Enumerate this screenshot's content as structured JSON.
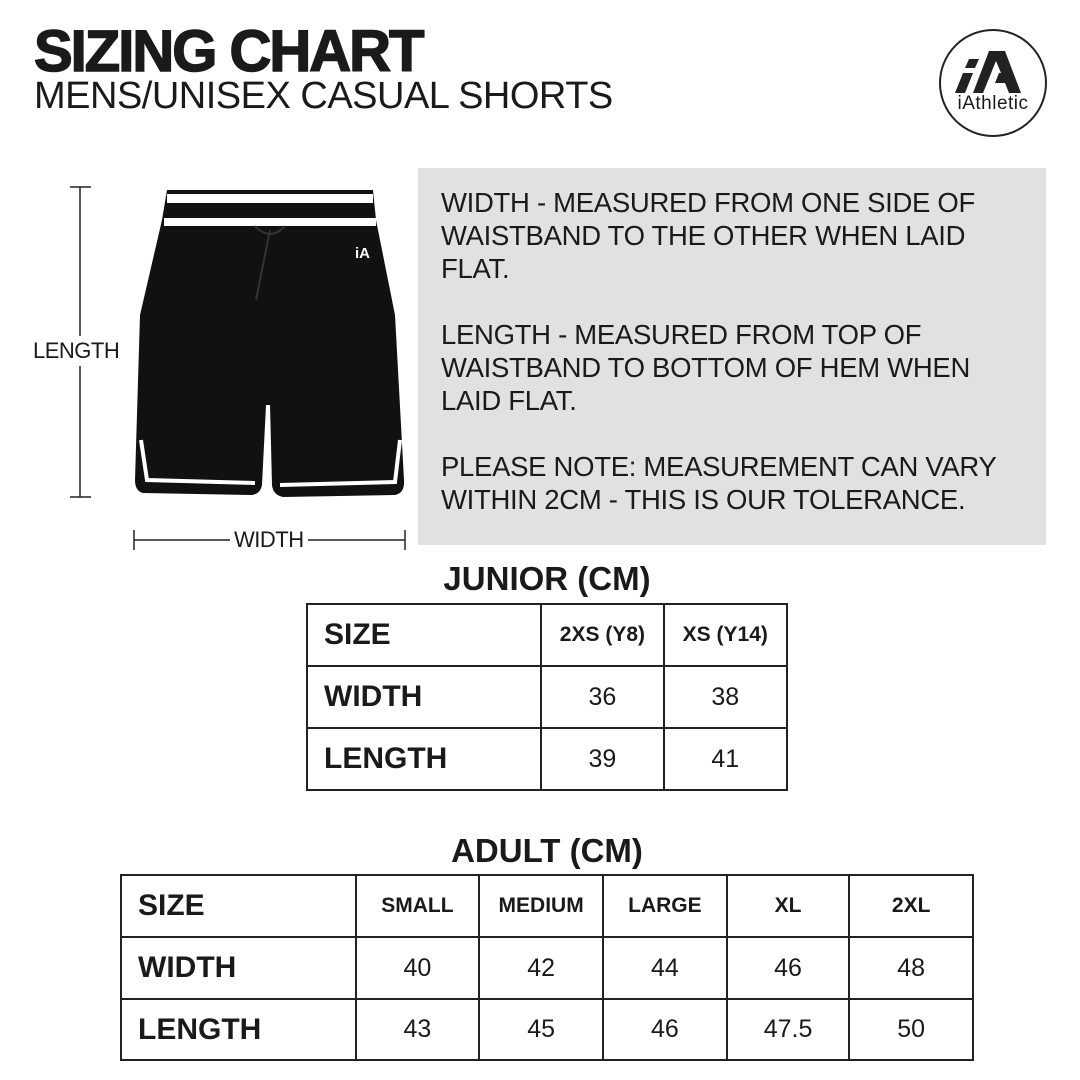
{
  "header": {
    "title": "SIZING CHART",
    "subtitle": "MENS/UNISEX CASUAL SHORTS"
  },
  "logo": {
    "mark": "iA",
    "text": "iAthletic"
  },
  "diagram": {
    "length_label": "LENGTH",
    "width_label": "WIDTH",
    "shorts_color": "#111111",
    "trim_color": "#ffffff"
  },
  "info": {
    "paragraphs": [
      "WIDTH - MEASURED FROM ONE SIDE OF WAISTBAND TO THE OTHER WHEN LAID FLAT.",
      "LENGTH - MEASURED FROM TOP OF WAISTBAND TO BOTTOM OF HEM WHEN LAID FLAT.",
      "PLEASE NOTE: MEASUREMENT CAN VARY WITHIN 2CM - THIS IS OUR TOLERANCE."
    ]
  },
  "junior": {
    "title": "JUNIOR (CM)",
    "headers": [
      "SIZE",
      "2XS (Y8)",
      "XS (Y14)"
    ],
    "rows": [
      [
        "WIDTH",
        "36",
        "38"
      ],
      [
        "LENGTH",
        "39",
        "41"
      ]
    ]
  },
  "adult": {
    "title": "ADULT (CM)",
    "headers": [
      "SIZE",
      "SMALL",
      "MEDIUM",
      "LARGE",
      "XL",
      "2XL"
    ],
    "rows": [
      [
        "WIDTH",
        "40",
        "42",
        "44",
        "46",
        "48"
      ],
      [
        "LENGTH",
        "43",
        "45",
        "46",
        "47.5",
        "50"
      ]
    ]
  }
}
